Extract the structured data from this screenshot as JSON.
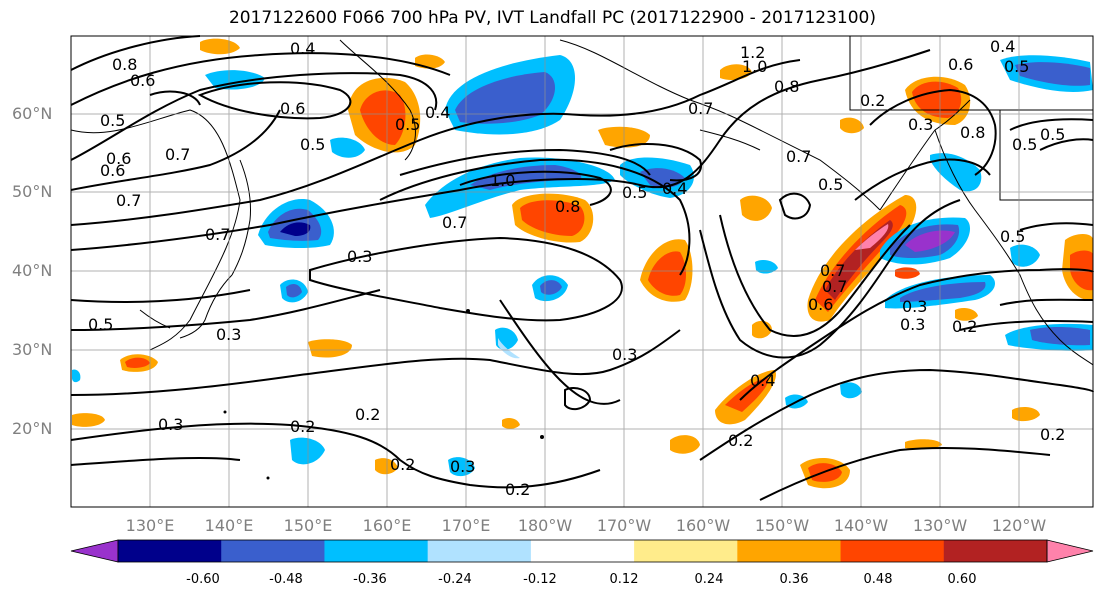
{
  "title": "2017122600 F066 700 hPa PV, IVT Landfall PC (2017122900 - 2017123100)",
  "lat_labels": [
    "60°N",
    "50°N",
    "40°N",
    "30°N",
    "20°N"
  ],
  "lon_labels": [
    "130°E",
    "140°E",
    "150°E",
    "160°E",
    "170°E",
    "180°W",
    "170°W",
    "160°W",
    "150°W",
    "140°W",
    "130°W",
    "120°W"
  ],
  "colorbar": {
    "colors": [
      "#9932cc",
      "#00008b",
      "#3a5fcd",
      "#00bfff",
      "#b0e2ff",
      "#ffffff",
      "#ffec8b",
      "#ffa500",
      "#ff4500",
      "#b22222",
      "#ff82ab"
    ],
    "ticks": [
      "-0.60",
      "-0.48",
      "-0.36",
      "-0.24",
      "-0.12",
      "0.12",
      "0.24",
      "0.36",
      "0.48",
      "0.60"
    ]
  },
  "contour_labels": [
    "0.4",
    "0.8",
    "0.6",
    "0.5",
    "0.6",
    "0.7",
    "0.4",
    "0.5",
    "0.6",
    "0.5",
    "0.7",
    "0.6",
    "0.7",
    "0.7",
    "0.3",
    "0.5",
    "0.3",
    "0.3",
    "0.2",
    "0.2",
    "0.2",
    "0.3",
    "0.2",
    "0.3",
    "1.2",
    "1.0",
    "0.8",
    "0.7",
    "1.0",
    "0.7",
    "0.8",
    "0.5",
    "0.4",
    "0.7",
    "0.5",
    "0.3",
    "0.6",
    "0.7",
    "0.4",
    "0.2",
    "0.4",
    "0.5",
    "0.6",
    "0.8",
    "0.5",
    "0.3",
    "0.2",
    "0.5",
    "0.3",
    "0.2",
    "0.2",
    "0.5"
  ]
}
